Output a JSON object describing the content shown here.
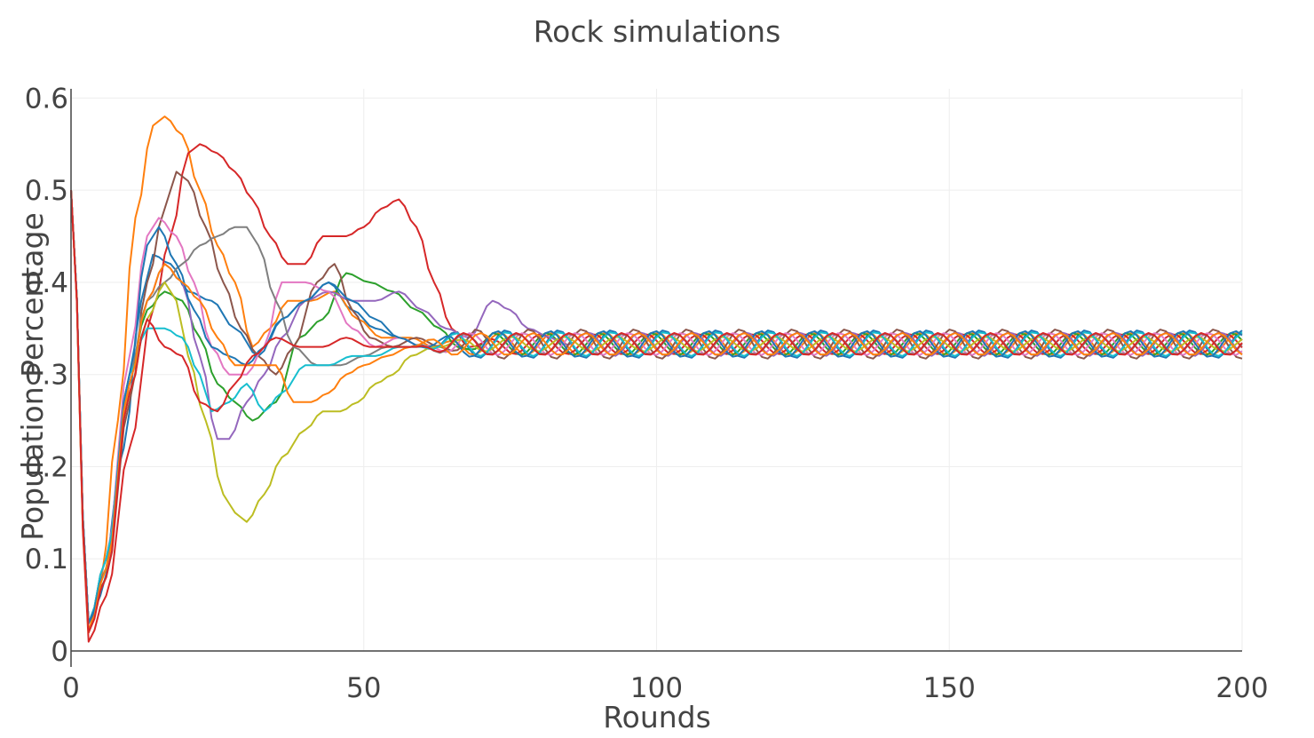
{
  "chart_data": {
    "type": "line",
    "title": "Rock simulations",
    "xlabel": "Rounds",
    "ylabel": "Population Percentage",
    "xlim": [
      0,
      200
    ],
    "ylim": [
      0,
      0.61
    ],
    "x_ticks": [
      0,
      50,
      100,
      150,
      200
    ],
    "y_ticks": [
      0,
      0.1,
      0.2,
      0.3,
      0.4,
      0.5,
      0.6
    ],
    "x_tick_labels": [
      "0",
      "50",
      "100",
      "150",
      "200"
    ],
    "y_tick_labels": [
      "0",
      "0.1",
      "0.2",
      "0.3",
      "0.4",
      "0.5",
      "0.6"
    ],
    "grid": true,
    "legend": "none",
    "steady_state": 0.333,
    "series": [
      {
        "color": "#1f77b4",
        "points": [
          [
            0,
            0.5
          ],
          [
            3,
            0.03
          ],
          [
            5,
            0.06
          ],
          [
            9,
            0.22
          ],
          [
            12,
            0.38
          ],
          [
            14,
            0.43
          ],
          [
            17,
            0.42
          ],
          [
            20,
            0.39
          ],
          [
            24,
            0.38
          ],
          [
            28,
            0.35
          ],
          [
            32,
            0.32
          ],
          [
            36,
            0.36
          ],
          [
            40,
            0.38
          ],
          [
            44,
            0.4
          ],
          [
            48,
            0.37
          ],
          [
            52,
            0.35
          ],
          [
            56,
            0.34
          ],
          [
            60,
            0.33
          ]
        ],
        "osc": {
          "amp": 0.015,
          "period": 9,
          "phase": 0.0
        }
      },
      {
        "color": "#ff7f0e",
        "points": [
          [
            0,
            0.5
          ],
          [
            3,
            0.02
          ],
          [
            5,
            0.07
          ],
          [
            8,
            0.25
          ],
          [
            11,
            0.47
          ],
          [
            14,
            0.57
          ],
          [
            16,
            0.58
          ],
          [
            19,
            0.56
          ],
          [
            22,
            0.5
          ],
          [
            25,
            0.44
          ],
          [
            28,
            0.4
          ],
          [
            31,
            0.33
          ],
          [
            34,
            0.35
          ],
          [
            37,
            0.38
          ],
          [
            41,
            0.38
          ],
          [
            45,
            0.39
          ],
          [
            49,
            0.36
          ],
          [
            53,
            0.34
          ],
          [
            58,
            0.34
          ],
          [
            62,
            0.33
          ]
        ],
        "osc": {
          "amp": 0.012,
          "period": 9,
          "phase": 0.7
        }
      },
      {
        "color": "#2ca02c",
        "points": [
          [
            0,
            0.5
          ],
          [
            3,
            0.03
          ],
          [
            6,
            0.1
          ],
          [
            10,
            0.3
          ],
          [
            13,
            0.37
          ],
          [
            16,
            0.39
          ],
          [
            19,
            0.38
          ],
          [
            22,
            0.34
          ],
          [
            25,
            0.29
          ],
          [
            28,
            0.27
          ],
          [
            31,
            0.25
          ],
          [
            35,
            0.27
          ],
          [
            39,
            0.34
          ],
          [
            43,
            0.36
          ],
          [
            47,
            0.41
          ],
          [
            51,
            0.4
          ],
          [
            55,
            0.39
          ],
          [
            59,
            0.37
          ],
          [
            63,
            0.35
          ],
          [
            66,
            0.33
          ]
        ],
        "osc": {
          "amp": 0.012,
          "period": 9,
          "phase": 1.4
        }
      },
      {
        "color": "#d62728",
        "points": [
          [
            0,
            0.5
          ],
          [
            3,
            0.01
          ],
          [
            6,
            0.06
          ],
          [
            10,
            0.22
          ],
          [
            14,
            0.37
          ],
          [
            17,
            0.45
          ],
          [
            20,
            0.54
          ],
          [
            22,
            0.55
          ],
          [
            25,
            0.54
          ],
          [
            28,
            0.52
          ],
          [
            31,
            0.49
          ],
          [
            34,
            0.45
          ],
          [
            37,
            0.42
          ],
          [
            40,
            0.42
          ],
          [
            43,
            0.45
          ],
          [
            47,
            0.45
          ],
          [
            50,
            0.46
          ],
          [
            53,
            0.48
          ],
          [
            56,
            0.49
          ],
          [
            59,
            0.46
          ],
          [
            62,
            0.4
          ],
          [
            65,
            0.35
          ],
          [
            68,
            0.33
          ]
        ],
        "osc": {
          "amp": 0.011,
          "period": 9,
          "phase": 2.1
        }
      },
      {
        "color": "#9467bd",
        "points": [
          [
            0,
            0.5
          ],
          [
            3,
            0.03
          ],
          [
            6,
            0.09
          ],
          [
            10,
            0.29
          ],
          [
            13,
            0.38
          ],
          [
            16,
            0.42
          ],
          [
            19,
            0.4
          ],
          [
            22,
            0.32
          ],
          [
            25,
            0.23
          ],
          [
            27,
            0.23
          ],
          [
            30,
            0.27
          ],
          [
            33,
            0.3
          ],
          [
            36,
            0.34
          ],
          [
            40,
            0.38
          ],
          [
            44,
            0.39
          ],
          [
            48,
            0.38
          ],
          [
            52,
            0.38
          ],
          [
            56,
            0.39
          ],
          [
            60,
            0.37
          ],
          [
            64,
            0.35
          ],
          [
            68,
            0.34
          ],
          [
            72,
            0.38
          ],
          [
            75,
            0.37
          ],
          [
            78,
            0.35
          ],
          [
            82,
            0.34
          ]
        ],
        "osc": {
          "amp": 0.013,
          "period": 9,
          "phase": 2.8
        }
      },
      {
        "color": "#8c564b",
        "points": [
          [
            0,
            0.5
          ],
          [
            3,
            0.03
          ],
          [
            6,
            0.08
          ],
          [
            10,
            0.27
          ],
          [
            13,
            0.4
          ],
          [
            16,
            0.48
          ],
          [
            18,
            0.52
          ],
          [
            20,
            0.51
          ],
          [
            23,
            0.46
          ],
          [
            26,
            0.4
          ],
          [
            29,
            0.35
          ],
          [
            32,
            0.32
          ],
          [
            35,
            0.3
          ],
          [
            38,
            0.33
          ],
          [
            42,
            0.4
          ],
          [
            45,
            0.42
          ],
          [
            48,
            0.37
          ],
          [
            51,
            0.34
          ],
          [
            55,
            0.33
          ],
          [
            59,
            0.34
          ],
          [
            63,
            0.33
          ]
        ],
        "osc": {
          "amp": 0.016,
          "period": 9,
          "phase": 3.5
        }
      },
      {
        "color": "#e377c2",
        "points": [
          [
            0,
            0.5
          ],
          [
            3,
            0.03
          ],
          [
            6,
            0.1
          ],
          [
            10,
            0.32
          ],
          [
            13,
            0.45
          ],
          [
            15,
            0.47
          ],
          [
            18,
            0.45
          ],
          [
            21,
            0.4
          ],
          [
            24,
            0.33
          ],
          [
            27,
            0.3
          ],
          [
            30,
            0.3
          ],
          [
            33,
            0.33
          ],
          [
            36,
            0.4
          ],
          [
            40,
            0.4
          ],
          [
            44,
            0.39
          ],
          [
            48,
            0.35
          ],
          [
            52,
            0.33
          ],
          [
            56,
            0.34
          ],
          [
            60,
            0.33
          ]
        ],
        "osc": {
          "amp": 0.012,
          "period": 9,
          "phase": 4.2
        }
      },
      {
        "color": "#7f7f7f",
        "points": [
          [
            0,
            0.5
          ],
          [
            3,
            0.03
          ],
          [
            6,
            0.1
          ],
          [
            10,
            0.3
          ],
          [
            13,
            0.38
          ],
          [
            16,
            0.4
          ],
          [
            19,
            0.42
          ],
          [
            22,
            0.44
          ],
          [
            25,
            0.45
          ],
          [
            28,
            0.46
          ],
          [
            30,
            0.46
          ],
          [
            32,
            0.44
          ],
          [
            35,
            0.38
          ],
          [
            38,
            0.33
          ],
          [
            42,
            0.31
          ],
          [
            46,
            0.31
          ],
          [
            50,
            0.32
          ],
          [
            54,
            0.33
          ],
          [
            58,
            0.33
          ]
        ],
        "osc": {
          "amp": 0.011,
          "period": 9,
          "phase": 4.9
        }
      },
      {
        "color": "#bcbd22",
        "points": [
          [
            0,
            0.5
          ],
          [
            3,
            0.02
          ],
          [
            6,
            0.09
          ],
          [
            10,
            0.28
          ],
          [
            13,
            0.36
          ],
          [
            16,
            0.4
          ],
          [
            18,
            0.38
          ],
          [
            20,
            0.32
          ],
          [
            23,
            0.25
          ],
          [
            26,
            0.17
          ],
          [
            28,
            0.15
          ],
          [
            30,
            0.14
          ],
          [
            33,
            0.17
          ],
          [
            36,
            0.21
          ],
          [
            40,
            0.24
          ],
          [
            43,
            0.26
          ],
          [
            46,
            0.26
          ],
          [
            49,
            0.27
          ],
          [
            52,
            0.29
          ],
          [
            55,
            0.3
          ],
          [
            58,
            0.32
          ],
          [
            62,
            0.33
          ]
        ],
        "osc": {
          "amp": 0.008,
          "period": 9,
          "phase": 5.6
        }
      },
      {
        "color": "#17becf",
        "points": [
          [
            0,
            0.5
          ],
          [
            3,
            0.03
          ],
          [
            6,
            0.1
          ],
          [
            10,
            0.3
          ],
          [
            13,
            0.35
          ],
          [
            16,
            0.35
          ],
          [
            19,
            0.34
          ],
          [
            22,
            0.3
          ],
          [
            24,
            0.26
          ],
          [
            27,
            0.27
          ],
          [
            30,
            0.29
          ],
          [
            33,
            0.26
          ],
          [
            36,
            0.28
          ],
          [
            40,
            0.31
          ],
          [
            44,
            0.31
          ],
          [
            48,
            0.32
          ],
          [
            52,
            0.32
          ],
          [
            56,
            0.33
          ],
          [
            60,
            0.33
          ]
        ],
        "osc": {
          "amp": 0.013,
          "period": 9,
          "phase": 6.2
        }
      },
      {
        "color": "#1f77b4",
        "points": [
          [
            0,
            0.5
          ],
          [
            3,
            0.03
          ],
          [
            6,
            0.09
          ],
          [
            10,
            0.3
          ],
          [
            13,
            0.44
          ],
          [
            15,
            0.46
          ],
          [
            18,
            0.42
          ],
          [
            21,
            0.37
          ],
          [
            24,
            0.33
          ],
          [
            27,
            0.32
          ],
          [
            30,
            0.31
          ],
          [
            33,
            0.33
          ],
          [
            36,
            0.36
          ],
          [
            40,
            0.38
          ],
          [
            44,
            0.4
          ],
          [
            48,
            0.38
          ],
          [
            52,
            0.36
          ],
          [
            56,
            0.34
          ],
          [
            60,
            0.33
          ]
        ],
        "osc": {
          "amp": 0.014,
          "period": 9,
          "phase": 1.0
        }
      },
      {
        "color": "#ff7f0e",
        "points": [
          [
            0,
            0.5
          ],
          [
            3,
            0.02
          ],
          [
            6,
            0.09
          ],
          [
            10,
            0.29
          ],
          [
            13,
            0.38
          ],
          [
            16,
            0.42
          ],
          [
            19,
            0.4
          ],
          [
            22,
            0.38
          ],
          [
            25,
            0.34
          ],
          [
            28,
            0.31
          ],
          [
            31,
            0.31
          ],
          [
            35,
            0.31
          ],
          [
            38,
            0.27
          ],
          [
            41,
            0.27
          ],
          [
            44,
            0.28
          ],
          [
            47,
            0.3
          ],
          [
            50,
            0.31
          ],
          [
            54,
            0.32
          ],
          [
            58,
            0.33
          ]
        ],
        "osc": {
          "amp": 0.012,
          "period": 9,
          "phase": 3.0
        }
      },
      {
        "color": "#d62728",
        "points": [
          [
            0,
            0.5
          ],
          [
            3,
            0.02
          ],
          [
            6,
            0.08
          ],
          [
            10,
            0.28
          ],
          [
            13,
            0.36
          ],
          [
            16,
            0.33
          ],
          [
            19,
            0.32
          ],
          [
            22,
            0.27
          ],
          [
            25,
            0.26
          ],
          [
            28,
            0.29
          ],
          [
            31,
            0.32
          ],
          [
            35,
            0.34
          ],
          [
            39,
            0.33
          ],
          [
            43,
            0.33
          ],
          [
            47,
            0.34
          ],
          [
            51,
            0.33
          ],
          [
            55,
            0.33
          ],
          [
            59,
            0.33
          ]
        ],
        "osc": {
          "amp": 0.012,
          "period": 9,
          "phase": 5.0
        }
      }
    ]
  }
}
